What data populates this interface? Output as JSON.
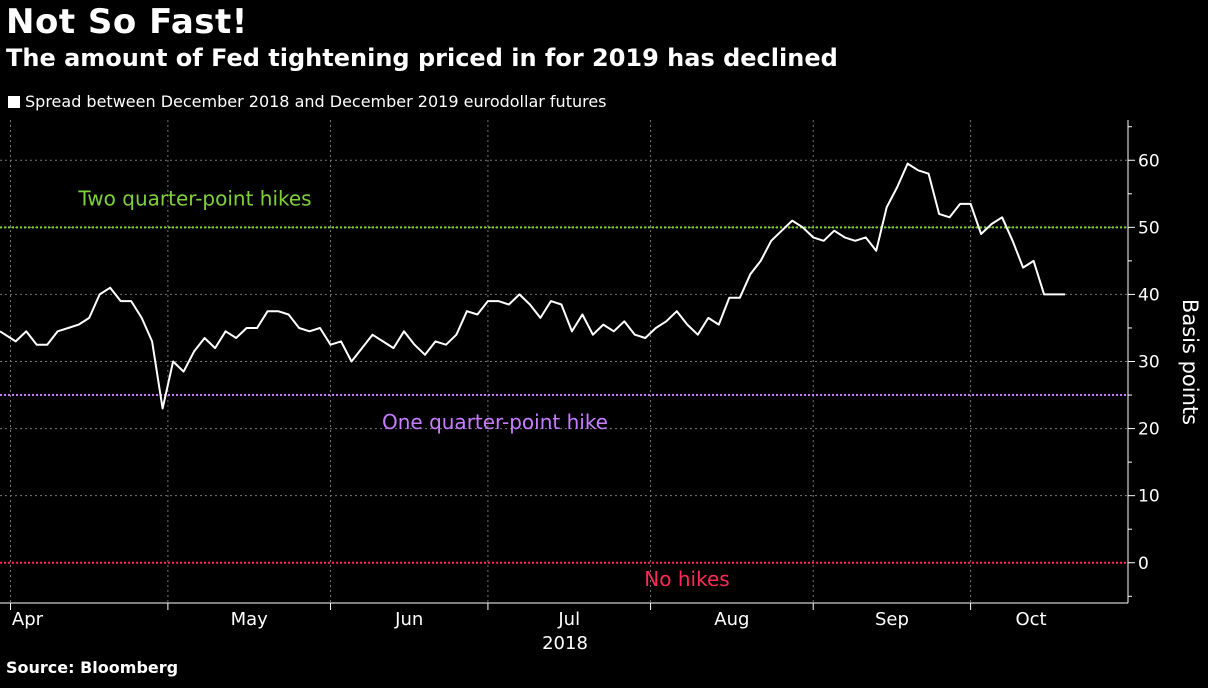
{
  "title": "Not So Fast!",
  "subtitle": "The amount of Fed tightening priced in for 2019 has declined",
  "legend_label": "Spread between December 2018 and December 2019 eurodollar futures",
  "source": "Source: Bloomberg",
  "colors": {
    "background": "#000000",
    "series": "#ffffff",
    "two_hikes": "#7fd13b",
    "one_hike": "#c77dff",
    "no_hikes": "#ff2a55",
    "grid": "#777777"
  },
  "chart_data": {
    "type": "line",
    "title": "Not So Fast!",
    "subtitle": "The amount of Fed tightening priced in for 2019 has declined",
    "xlabel": "2018",
    "ylabel": "Basis points",
    "ylim": [
      -6,
      66
    ],
    "yticks": [
      0,
      10,
      20,
      30,
      40,
      50,
      60
    ],
    "y_axis_side": "right",
    "grid": true,
    "x_tick_labels": [
      "Apr",
      "May",
      "Jun",
      "Jul",
      "Aug",
      "Sep",
      "Oct"
    ],
    "x_tick_dates": [
      "2018-04-01",
      "2018-05-01",
      "2018-06-01",
      "2018-07-01",
      "2018-08-01",
      "2018-09-01",
      "2018-10-01"
    ],
    "xlim": [
      "2018-03-30",
      "2018-10-31"
    ],
    "legend_position": "top-left",
    "reference_lines": [
      {
        "label": "Two quarter-point hikes",
        "value": 50,
        "color": "#7fd13b"
      },
      {
        "label": "One quarter-point hike",
        "value": 25,
        "color": "#c77dff"
      },
      {
        "label": "No hikes",
        "value": 0,
        "color": "#ff2a55"
      }
    ],
    "series": [
      {
        "name": "Spread between December 2018 and December 2019 eurodollar futures",
        "x": [
          "2018-03-30",
          "2018-04-02",
          "2018-04-04",
          "2018-04-06",
          "2018-04-08",
          "2018-04-10",
          "2018-04-12",
          "2018-04-14",
          "2018-04-16",
          "2018-04-18",
          "2018-04-20",
          "2018-04-22",
          "2018-04-24",
          "2018-04-26",
          "2018-04-28",
          "2018-04-30",
          "2018-05-02",
          "2018-05-04",
          "2018-05-06",
          "2018-05-08",
          "2018-05-10",
          "2018-05-12",
          "2018-05-14",
          "2018-05-16",
          "2018-05-18",
          "2018-05-20",
          "2018-05-22",
          "2018-05-24",
          "2018-05-26",
          "2018-05-28",
          "2018-05-30",
          "2018-06-01",
          "2018-06-03",
          "2018-06-05",
          "2018-06-07",
          "2018-06-09",
          "2018-06-11",
          "2018-06-13",
          "2018-06-15",
          "2018-06-17",
          "2018-06-19",
          "2018-06-21",
          "2018-06-23",
          "2018-06-25",
          "2018-06-27",
          "2018-06-29",
          "2018-07-01",
          "2018-07-03",
          "2018-07-05",
          "2018-07-07",
          "2018-07-09",
          "2018-07-11",
          "2018-07-13",
          "2018-07-15",
          "2018-07-17",
          "2018-07-19",
          "2018-07-21",
          "2018-07-23",
          "2018-07-25",
          "2018-07-27",
          "2018-07-29",
          "2018-07-31",
          "2018-08-02",
          "2018-08-04",
          "2018-08-06",
          "2018-08-08",
          "2018-08-10",
          "2018-08-12",
          "2018-08-14",
          "2018-08-16",
          "2018-08-18",
          "2018-08-20",
          "2018-08-22",
          "2018-08-24",
          "2018-08-26",
          "2018-08-28",
          "2018-08-30",
          "2018-09-01",
          "2018-09-03",
          "2018-09-05",
          "2018-09-07",
          "2018-09-09",
          "2018-09-11",
          "2018-09-13",
          "2018-09-15",
          "2018-09-17",
          "2018-09-19",
          "2018-09-21",
          "2018-09-23",
          "2018-09-25",
          "2018-09-27",
          "2018-09-29",
          "2018-10-01",
          "2018-10-03",
          "2018-10-05",
          "2018-10-07",
          "2018-10-09",
          "2018-10-11",
          "2018-10-13",
          "2018-10-15",
          "2018-10-17",
          "2018-10-19"
        ],
        "y": [
          34.5,
          33.0,
          34.5,
          32.5,
          32.5,
          34.5,
          35.0,
          35.5,
          36.5,
          40.0,
          41.0,
          39.0,
          39.0,
          36.5,
          33.0,
          23.0,
          30.0,
          28.5,
          31.5,
          33.5,
          32.0,
          34.5,
          33.5,
          35.0,
          35.0,
          37.5,
          37.5,
          37.0,
          35.0,
          34.5,
          35.0,
          32.5,
          33.0,
          30.0,
          32.0,
          34.0,
          33.0,
          32.0,
          34.5,
          32.5,
          31.0,
          33.0,
          32.5,
          34.0,
          37.5,
          37.0,
          39.0,
          39.0,
          38.5,
          40.0,
          38.5,
          36.5,
          39.0,
          38.5,
          34.5,
          37.0,
          34.0,
          35.5,
          34.5,
          36.0,
          34.0,
          33.5,
          35.0,
          36.0,
          37.5,
          35.5,
          34.0,
          36.5,
          35.5,
          39.5,
          39.5,
          43.0,
          45.0,
          48.0,
          49.5,
          51.0,
          50.0,
          48.5,
          48.0,
          49.5,
          48.5,
          48.0,
          48.5,
          46.5,
          53.0,
          56.0,
          59.5,
          58.5,
          58.0,
          52.0,
          51.5,
          53.5,
          53.5,
          49.0,
          50.5,
          51.5,
          48.0,
          44.0,
          45.0,
          40.0,
          40.0,
          40.0
        ]
      }
    ]
  }
}
